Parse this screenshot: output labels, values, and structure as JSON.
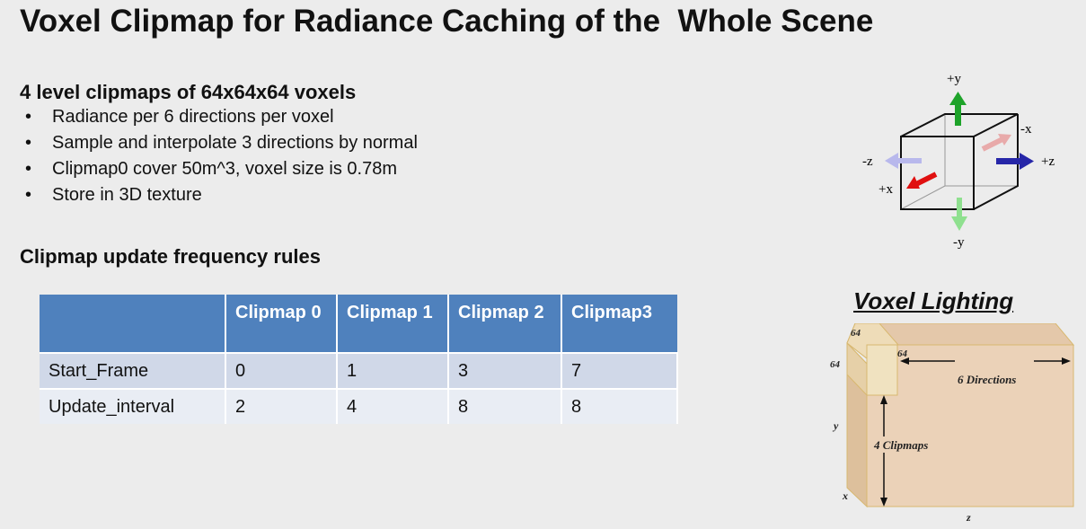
{
  "title": "Voxel Clipmap for Radiance Caching of the  Whole Scene",
  "section1": {
    "heading": "4 level clipmaps of 64x64x64 voxels",
    "bullets": [
      "Radiance per 6 directions per voxel",
      "Sample and interpolate 3 directions by normal",
      "Clipmap0 cover 50m^3, voxel size is 0.78m",
      "Store in 3D texture"
    ]
  },
  "section2": {
    "heading": "Clipmap update frequency rules"
  },
  "table": {
    "headers": [
      "",
      "Clipmap 0",
      "Clipmap 1",
      "Clipmap 2",
      "Clipmap3"
    ],
    "rows": [
      [
        "Start_Frame",
        "0",
        "1",
        "3",
        "7"
      ],
      [
        "Update_interval",
        "2",
        "4",
        "8",
        "8"
      ]
    ],
    "header_color": "#4f81bd"
  },
  "cube_diagram": {
    "labels": {
      "py": "+y",
      "ny": "-y",
      "px": "+x",
      "nx": "-x",
      "pz": "+z",
      "nz": "-z"
    }
  },
  "voxel_lighting": {
    "title": "Voxel Lighting",
    "dim_top": "64",
    "dim_left": "64",
    "dim_depth": "64",
    "directions": "6 Directions",
    "clipmaps": "4 Clipmaps",
    "axis_y": "y",
    "axis_x": "x",
    "axis_z": "z"
  }
}
